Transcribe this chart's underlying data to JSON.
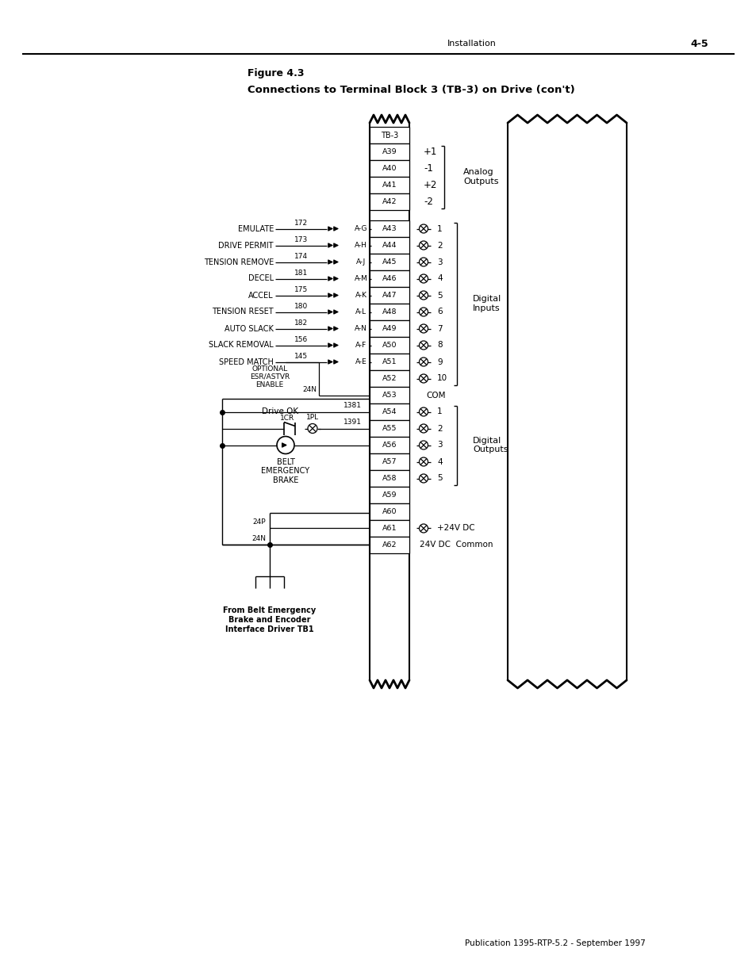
{
  "title_line1": "Figure 4.3",
  "title_line2": "Connections to Terminal Block 3 (TB-3) on Drive (con't)",
  "header_section": "Installation",
  "page_number": "4-5",
  "publication": "Publication 1395-RTP-5.2 - September 1997",
  "bg_color": "#ffffff",
  "tb3_label": "TB-3",
  "analog_terminals": [
    "A39",
    "A40",
    "A41",
    "A42"
  ],
  "analog_labels": [
    "+1",
    "-1",
    "+2",
    "-2"
  ],
  "analog_group_label": "Analog\nOutputs",
  "di_terminals": [
    "A43",
    "A44",
    "A45",
    "A46",
    "A47",
    "A48",
    "A49",
    "A50",
    "A51",
    "A52",
    "A53"
  ],
  "di_numbers": [
    "1",
    "2",
    "3",
    "4",
    "5",
    "6",
    "7",
    "8",
    "9",
    "10",
    "COM"
  ],
  "di_group_label": "Digital\nInputs",
  "do_terminals": [
    "A54",
    "A55",
    "A56",
    "A57",
    "A58"
  ],
  "do_numbers": [
    "1",
    "2",
    "3",
    "4",
    "5"
  ],
  "do_group_label": "Digital\nOutputs",
  "extra_terminals": [
    "A59",
    "A60",
    "A61",
    "A62"
  ],
  "power_labels": [
    "+24V DC",
    "24V DC  Common"
  ],
  "input_signals": [
    {
      "label": "EMULATE",
      "wire": "172",
      "conn": "A-G",
      "term": "A43"
    },
    {
      "label": "DRIVE PERMIT",
      "wire": "173",
      "conn": "A-H",
      "term": "A44"
    },
    {
      "label": "TENSION REMOVE",
      "wire": "174",
      "conn": "A-J",
      "term": "A45"
    },
    {
      "label": "DECEL",
      "wire": "181",
      "conn": "A-M",
      "term": "A46"
    },
    {
      "label": "ACCEL",
      "wire": "175",
      "conn": "A-K",
      "term": "A47"
    },
    {
      "label": "TENSION RESET",
      "wire": "180",
      "conn": "A-L",
      "term": "A48"
    },
    {
      "label": "AUTO SLACK",
      "wire": "182",
      "conn": "A-N",
      "term": "A49"
    },
    {
      "label": "SLACK REMOVAL",
      "wire": "156",
      "conn": "A-F",
      "term": "A50"
    },
    {
      "label": "SPEED MATCH",
      "wire": "145",
      "conn": "A-E",
      "term": "A51"
    }
  ],
  "optional_label": "OPTIONAL\nESR/ASTVR\nENABLE",
  "drive_ok_label": "Drive OK",
  "wire_1381": "1381",
  "wire_1391": "1391",
  "relay_label": "1CR",
  "pilot_label": "1PL",
  "belt_label": "BELT\nEMERGENCY\nBRAKE",
  "from_label": "From Belt Emergency\nBrake and Encoder\nInterface Driver TB1",
  "wire_24p": "24P",
  "wire_24n": "24N"
}
